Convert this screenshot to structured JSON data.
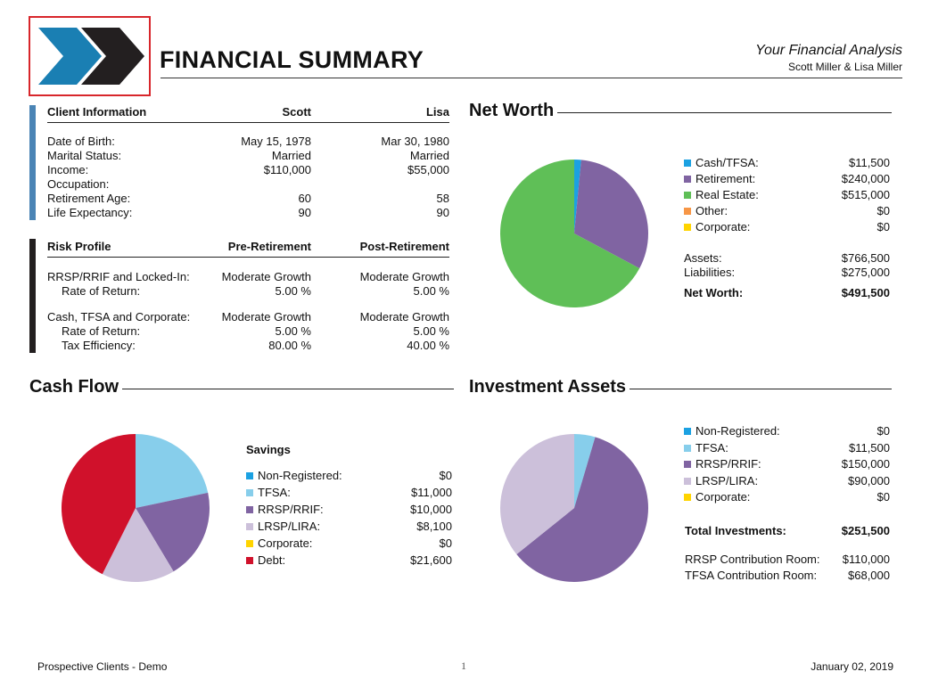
{
  "header": {
    "title": "FINANCIAL SUMMARY",
    "subtitle": "Your Financial Analysis",
    "clients": "Scott Miller & Lisa Miller"
  },
  "client_info": {
    "heading": "Client Information",
    "col1": "Scott",
    "col2": "Lisa",
    "rows": [
      {
        "label": "Date of Birth:",
        "v1": "May 15, 1978",
        "v2": "Mar 30, 1980"
      },
      {
        "label": "Marital Status:",
        "v1": "Married",
        "v2": "Married"
      },
      {
        "label": "Income:",
        "v1": "$110,000",
        "v2": "$55,000"
      },
      {
        "label": "Occupation:",
        "v1": "",
        "v2": ""
      },
      {
        "label": "Retirement Age:",
        "v1": "60",
        "v2": "58"
      },
      {
        "label": "Life Expectancy:",
        "v1": "90",
        "v2": "90"
      }
    ]
  },
  "risk_profile": {
    "heading": "Risk Profile",
    "col1": "Pre-Retirement",
    "col2": "Post-Retirement",
    "groups": [
      {
        "label": "RRSP/RRIF and Locked-In:",
        "v1": "Moderate Growth",
        "v2": "Moderate Growth",
        "sub": [
          {
            "label": "Rate of Return:",
            "v1": "5.00 %",
            "v2": "5.00 %"
          }
        ]
      },
      {
        "label": "Cash, TFSA and Corporate:",
        "v1": "Moderate Growth",
        "v2": "Moderate Growth",
        "sub": [
          {
            "label": "Rate of Return:",
            "v1": "5.00 %",
            "v2": "5.00 %"
          },
          {
            "label": "Tax Efficiency:",
            "v1": "80.00 %",
            "v2": "40.00 %"
          }
        ]
      }
    ]
  },
  "net_worth": {
    "heading": "Net Worth",
    "legend": [
      {
        "label": "Cash/TFSA:",
        "value": "$11,500",
        "color": "#1ba1e2"
      },
      {
        "label": "Retirement:",
        "value": "$240,000",
        "color": "#8064a2"
      },
      {
        "label": "Real Estate:",
        "value": "$515,000",
        "color": "#5fbf57"
      },
      {
        "label": "Other:",
        "value": "$0",
        "color": "#f79646"
      },
      {
        "label": "Corporate:",
        "value": "$0",
        "color": "#ffd400"
      }
    ],
    "assets_label": "Assets:",
    "assets_value": "$766,500",
    "liabilities_label": "Liabilities:",
    "liabilities_value": "$275,000",
    "networth_label": "Net Worth:",
    "networth_value": "$491,500"
  },
  "cash_flow": {
    "heading": "Cash Flow",
    "savings_heading": "Savings",
    "legend": [
      {
        "label": "Non-Registered:",
        "value": "$0",
        "color": "#1ba1e2"
      },
      {
        "label": "TFSA:",
        "value": "$11,000",
        "color": "#87ceeb"
      },
      {
        "label": "RRSP/RRIF:",
        "value": "$10,000",
        "color": "#8064a2"
      },
      {
        "label": "LRSP/LIRA:",
        "value": "$8,100",
        "color": "#ccc0da"
      },
      {
        "label": "Corporate:",
        "value": "$0",
        "color": "#ffd400"
      },
      {
        "label": "Debt:",
        "value": "$21,600",
        "color": "#d0112b"
      }
    ]
  },
  "investment_assets": {
    "heading": "Investment Assets",
    "legend": [
      {
        "label": "Non-Registered:",
        "value": "$0",
        "color": "#1ba1e2"
      },
      {
        "label": "TFSA:",
        "value": "$11,500",
        "color": "#87ceeb"
      },
      {
        "label": "RRSP/RRIF:",
        "value": "$150,000",
        "color": "#8064a2"
      },
      {
        "label": "LRSP/LIRA:",
        "value": "$90,000",
        "color": "#ccc0da"
      },
      {
        "label": "Corporate:",
        "value": "$0",
        "color": "#ffd400"
      }
    ],
    "total_label": "Total Investments:",
    "total_value": "$251,500",
    "rrsp_room_label": "RRSP Contribution Room:",
    "rrsp_room_value": "$110,000",
    "tfsa_room_label": "TFSA Contribution Room:",
    "tfsa_room_value": "$68,000"
  },
  "chart_data": [
    {
      "type": "pie",
      "title": "Net Worth",
      "labels": [
        "Cash/TFSA",
        "Retirement",
        "Real Estate",
        "Other",
        "Corporate"
      ],
      "values": [
        11500,
        240000,
        515000,
        0,
        0
      ],
      "colors": [
        "#1ba1e2",
        "#8064a2",
        "#5fbf57",
        "#f79646",
        "#ffd400"
      ]
    },
    {
      "type": "pie",
      "title": "Cash Flow",
      "labels": [
        "Non-Registered",
        "TFSA",
        "RRSP/RRIF",
        "LRSP/LIRA",
        "Corporate",
        "Debt"
      ],
      "values": [
        0,
        11000,
        10000,
        8100,
        0,
        21600
      ],
      "colors": [
        "#1ba1e2",
        "#87ceeb",
        "#8064a2",
        "#ccc0da",
        "#ffd400",
        "#d0112b"
      ]
    },
    {
      "type": "pie",
      "title": "Investment Assets",
      "labels": [
        "Non-Registered",
        "TFSA",
        "RRSP/RRIF",
        "LRSP/LIRA",
        "Corporate"
      ],
      "values": [
        0,
        11500,
        150000,
        90000,
        0
      ],
      "colors": [
        "#1ba1e2",
        "#87ceeb",
        "#8064a2",
        "#ccc0da",
        "#ffd400"
      ]
    }
  ],
  "footer": {
    "left": "Prospective Clients - Demo",
    "page": "1",
    "date": "January 02, 2019"
  }
}
